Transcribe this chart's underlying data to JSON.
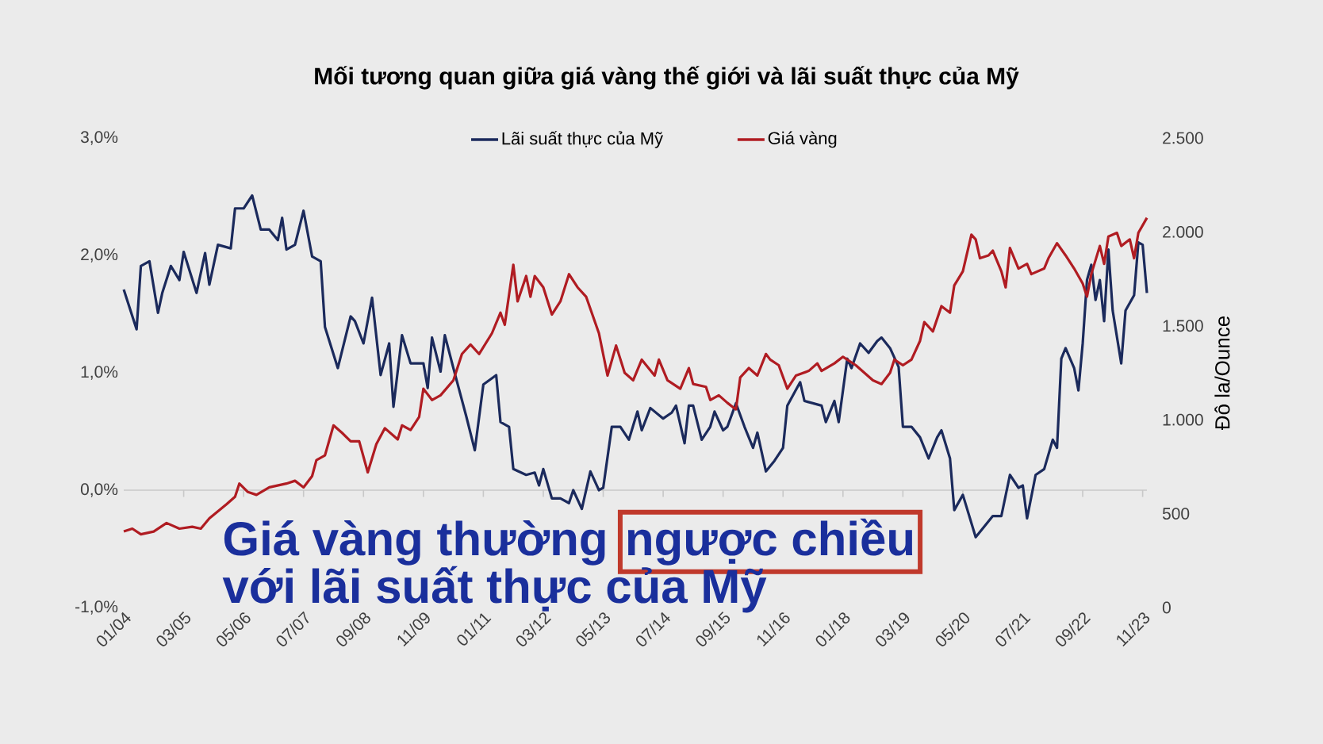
{
  "chart_data": {
    "type": "line",
    "title": "Mối tương quan giữa giá vàng thế giới và lãi suất thực của Mỹ",
    "y2label": "Đô la/Ounce",
    "legend": "top",
    "xlim": [
      "2004-01",
      "2023-12"
    ],
    "xticks": [
      {
        "value": "2004-01",
        "label": "01/04"
      },
      {
        "value": "2005-03",
        "label": "03/05"
      },
      {
        "value": "2006-05",
        "label": "05/06"
      },
      {
        "value": "2007-07",
        "label": "07/07"
      },
      {
        "value": "2008-09",
        "label": "09/08"
      },
      {
        "value": "2009-11",
        "label": "11/09"
      },
      {
        "value": "2011-01",
        "label": "01/11"
      },
      {
        "value": "2012-03",
        "label": "03/12"
      },
      {
        "value": "2013-05",
        "label": "05/13"
      },
      {
        "value": "2014-07",
        "label": "07/14"
      },
      {
        "value": "2015-09",
        "label": "09/15"
      },
      {
        "value": "2016-11",
        "label": "11/16"
      },
      {
        "value": "2018-01",
        "label": "01/18"
      },
      {
        "value": "2019-03",
        "label": "03/19"
      },
      {
        "value": "2020-05",
        "label": "05/20"
      },
      {
        "value": "2021-07",
        "label": "07/21"
      },
      {
        "value": "2022-09",
        "label": "09/22"
      },
      {
        "value": "2023-11",
        "label": "11/23"
      }
    ],
    "ylim": [
      -1,
      3
    ],
    "yticks": [
      {
        "value": -1,
        "label": "-1,0%"
      },
      {
        "value": 0,
        "label": "0,0%"
      },
      {
        "value": 1,
        "label": "1,0%"
      },
      {
        "value": 2,
        "label": "2,0%"
      },
      {
        "value": 3,
        "label": "3,0%"
      }
    ],
    "y2lim": [
      0,
      2500
    ],
    "y2ticks": [
      0,
      500,
      {
        "value": 1000,
        "label": "1.000"
      },
      {
        "value": 1500,
        "label": "1.500"
      },
      {
        "value": 2000,
        "label": "2.000"
      },
      {
        "value": 2500,
        "label": "2.500"
      }
    ],
    "annotations": [
      "Giá vàng thường",
      "ngược chiều",
      "với lãi suất thực của Mỹ"
    ],
    "series": [
      {
        "name": "Lãi suất thực của Mỹ",
        "color": "#1b2a5c",
        "x": [
          "2004-01",
          "2004-04",
          "2004-05",
          "2004-07",
          "2004-09",
          "2004-10",
          "2004-12",
          "2005-02",
          "2005-03",
          "2005-06",
          "2005-08",
          "2005-09",
          "2005-11",
          "2006-02",
          "2006-03",
          "2006-05",
          "2006-07",
          "2006-09",
          "2006-11",
          "2007-01",
          "2007-02",
          "2007-03",
          "2007-05",
          "2007-07",
          "2007-09",
          "2007-11",
          "2007-12",
          "2008-03",
          "2008-06",
          "2008-07",
          "2008-09",
          "2008-11",
          "2009-01",
          "2009-03",
          "2009-04",
          "2009-06",
          "2009-08",
          "2009-11",
          "2009-12",
          "2010-01",
          "2010-03",
          "2010-04",
          "2010-06",
          "2010-09",
          "2010-11",
          "2011-01",
          "2011-04",
          "2011-05",
          "2011-07",
          "2011-08",
          "2011-11",
          "2012-01",
          "2012-02",
          "2012-03",
          "2012-05",
          "2012-07",
          "2012-09",
          "2012-10",
          "2012-12",
          "2013-02",
          "2013-04",
          "2013-05",
          "2013-07",
          "2013-09",
          "2013-11",
          "2014-01",
          "2014-02",
          "2014-04",
          "2014-07",
          "2014-09",
          "2014-10",
          "2014-12",
          "2015-01",
          "2015-02",
          "2015-04",
          "2015-06",
          "2015-07",
          "2015-09",
          "2015-10",
          "2015-12",
          "2016-02",
          "2016-04",
          "2016-05",
          "2016-07",
          "2016-09",
          "2016-11",
          "2016-12",
          "2017-03",
          "2017-04",
          "2017-08",
          "2017-09",
          "2017-11",
          "2017-12",
          "2018-02",
          "2018-03",
          "2018-05",
          "2018-07",
          "2018-09",
          "2018-10",
          "2018-12",
          "2019-02",
          "2019-03",
          "2019-05",
          "2019-07",
          "2019-09",
          "2019-11",
          "2019-12",
          "2020-02",
          "2020-03",
          "2020-05",
          "2020-08",
          "2020-10",
          "2020-12",
          "2021-02",
          "2021-04",
          "2021-06",
          "2021-07",
          "2021-08",
          "2021-10",
          "2021-12",
          "2022-02",
          "2022-03",
          "2022-04",
          "2022-05",
          "2022-07",
          "2022-08",
          "2022-09",
          "2022-10",
          "2022-11",
          "2022-12",
          "2023-01",
          "2023-02",
          "2023-03",
          "2023-04",
          "2023-06",
          "2023-07",
          "2023-09",
          "2023-10",
          "2023-11",
          "2023-12"
        ],
        "values": [
          1.71,
          1.37,
          1.91,
          1.95,
          1.51,
          1.68,
          1.91,
          1.79,
          2.03,
          1.68,
          2.02,
          1.75,
          2.09,
          2.06,
          2.4,
          2.4,
          2.51,
          2.22,
          2.22,
          2.13,
          2.32,
          2.05,
          2.09,
          2.38,
          1.99,
          1.95,
          1.39,
          1.04,
          1.48,
          1.44,
          1.25,
          1.64,
          0.98,
          1.25,
          0.71,
          1.32,
          1.08,
          1.08,
          0.87,
          1.3,
          1.01,
          1.32,
          1.04,
          0.63,
          0.34,
          0.9,
          0.98,
          0.58,
          0.54,
          0.18,
          0.13,
          0.15,
          0.04,
          0.18,
          -0.07,
          -0.07,
          -0.11,
          0.0,
          -0.16,
          0.16,
          0.0,
          0.02,
          0.54,
          0.54,
          0.43,
          0.67,
          0.51,
          0.7,
          0.61,
          0.66,
          0.72,
          0.4,
          0.72,
          0.72,
          0.43,
          0.54,
          0.67,
          0.51,
          0.54,
          0.74,
          0.54,
          0.36,
          0.49,
          0.16,
          0.25,
          0.36,
          0.72,
          0.92,
          0.76,
          0.72,
          0.58,
          0.76,
          0.58,
          1.12,
          1.04,
          1.25,
          1.17,
          1.27,
          1.3,
          1.21,
          1.05,
          0.54,
          0.54,
          0.45,
          0.27,
          0.45,
          0.51,
          0.27,
          -0.17,
          -0.04,
          -0.4,
          -0.31,
          -0.22,
          -0.22,
          0.13,
          0.02,
          0.04,
          -0.24,
          0.13,
          0.18,
          0.43,
          0.36,
          1.12,
          1.21,
          1.04,
          0.85,
          1.25,
          1.79,
          1.92,
          1.62,
          1.79,
          1.44,
          2.05,
          1.53,
          1.08,
          1.53,
          1.66,
          2.11,
          2.09,
          1.68
        ]
      },
      {
        "name": "Giá vàng",
        "color": "#b01c22",
        "axis": "y2",
        "x": [
          "2004-01",
          "2004-03",
          "2004-05",
          "2004-08",
          "2004-11",
          "2005-02",
          "2005-05",
          "2005-07",
          "2005-09",
          "2006-01",
          "2006-03",
          "2006-04",
          "2006-06",
          "2006-08",
          "2006-11",
          "2007-03",
          "2007-05",
          "2007-07",
          "2007-09",
          "2007-10",
          "2007-12",
          "2008-02",
          "2008-04",
          "2008-06",
          "2008-08",
          "2008-10",
          "2008-12",
          "2009-02",
          "2009-05",
          "2009-06",
          "2009-08",
          "2009-10",
          "2009-11",
          "2010-01",
          "2010-03",
          "2010-06",
          "2010-08",
          "2010-10",
          "2010-12",
          "2011-03",
          "2011-05",
          "2011-06",
          "2011-08",
          "2011-09",
          "2011-11",
          "2011-12",
          "2012-01",
          "2012-03",
          "2012-05",
          "2012-07",
          "2012-09",
          "2012-11",
          "2013-01",
          "2013-04",
          "2013-06",
          "2013-08",
          "2013-10",
          "2013-12",
          "2014-02",
          "2014-05",
          "2014-06",
          "2014-08",
          "2014-11",
          "2015-01",
          "2015-02",
          "2015-05",
          "2015-06",
          "2015-08",
          "2015-10",
          "2015-12",
          "2016-01",
          "2016-03",
          "2016-05",
          "2016-07",
          "2016-08",
          "2016-10",
          "2016-12",
          "2017-02",
          "2017-05",
          "2017-07",
          "2017-08",
          "2017-11",
          "2018-01",
          "2018-04",
          "2018-08",
          "2018-10",
          "2018-12",
          "2019-01",
          "2019-03",
          "2019-05",
          "2019-07",
          "2019-08",
          "2019-10",
          "2019-12",
          "2020-02",
          "2020-03",
          "2020-05",
          "2020-07",
          "2020-08",
          "2020-09",
          "2020-11",
          "2020-12",
          "2021-02",
          "2021-03",
          "2021-04",
          "2021-06",
          "2021-08",
          "2021-09",
          "2021-12",
          "2022-01",
          "2022-03",
          "2022-05",
          "2022-07",
          "2022-09",
          "2022-10",
          "2022-11",
          "2023-01",
          "2023-02",
          "2023-03",
          "2023-05",
          "2023-06",
          "2023-08",
          "2023-09",
          "2023-10",
          "2023-12"
        ],
        "values": [
          405,
          420,
          390,
          405,
          450,
          420,
          430,
          420,
          475,
          550,
          590,
          660,
          615,
          600,
          640,
          660,
          675,
          640,
          700,
          785,
          810,
          970,
          930,
          885,
          885,
          720,
          870,
          955,
          895,
          970,
          945,
          1015,
          1165,
          1105,
          1130,
          1210,
          1350,
          1400,
          1350,
          1460,
          1570,
          1505,
          1825,
          1630,
          1765,
          1655,
          1765,
          1705,
          1560,
          1630,
          1775,
          1705,
          1655,
          1460,
          1235,
          1395,
          1250,
          1210,
          1320,
          1235,
          1320,
          1210,
          1165,
          1275,
          1190,
          1175,
          1105,
          1130,
          1090,
          1055,
          1225,
          1275,
          1235,
          1350,
          1320,
          1290,
          1165,
          1235,
          1260,
          1300,
          1260,
          1300,
          1335,
          1290,
          1210,
          1190,
          1250,
          1320,
          1290,
          1320,
          1420,
          1520,
          1470,
          1605,
          1570,
          1715,
          1790,
          1985,
          1960,
          1860,
          1875,
          1900,
          1790,
          1705,
          1915,
          1805,
          1830,
          1775,
          1805,
          1860,
          1940,
          1875,
          1805,
          1725,
          1655,
          1775,
          1925,
          1830,
          1975,
          1995,
          1925,
          1960,
          1860,
          1995,
          2075
        ]
      }
    ]
  }
}
